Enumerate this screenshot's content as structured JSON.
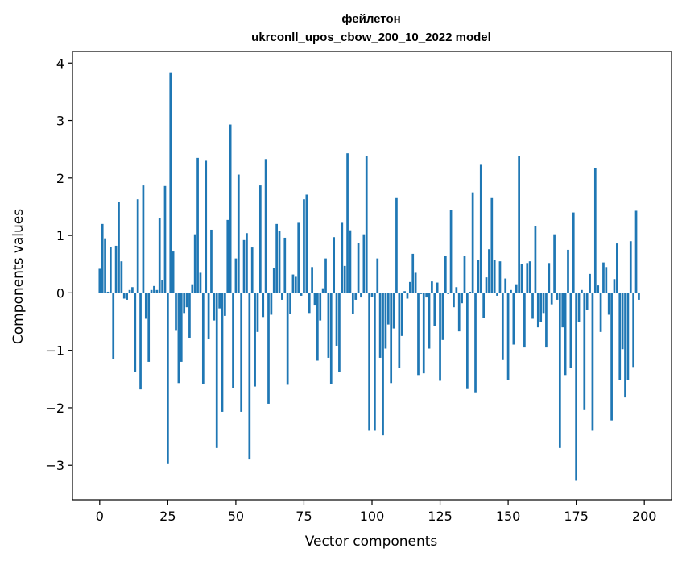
{
  "chart_data": {
    "type": "bar",
    "title_line1": "фейлетон",
    "title_line2": "ukrconll_upos_cbow_200_10_2022 model",
    "xlabel": "Vector components",
    "ylabel": "Components values",
    "xlim": [
      -10,
      210
    ],
    "ylim": [
      -3.6,
      4.2
    ],
    "xticks": [
      0,
      25,
      50,
      75,
      100,
      125,
      150,
      175,
      200
    ],
    "yticks": [
      -3,
      -2,
      -1,
      0,
      1,
      2,
      3,
      4
    ],
    "ytick_labels": [
      "−3",
      "−2",
      "−1",
      "0",
      "1",
      "2",
      "3",
      "4"
    ],
    "grid": false,
    "bar_color": "#1f77b4",
    "values": [
      0.42,
      1.2,
      0.95,
      0.02,
      0.8,
      -1.15,
      0.82,
      1.58,
      0.55,
      -0.1,
      -0.12,
      0.05,
      0.1,
      -1.38,
      1.63,
      -1.68,
      1.87,
      -0.45,
      -1.2,
      0.05,
      0.12,
      0.05,
      1.3,
      0.22,
      1.86,
      -2.98,
      3.84,
      0.72,
      -0.66,
      -1.57,
      -1.2,
      -0.35,
      -0.25,
      -0.78,
      0.15,
      1.02,
      2.35,
      0.35,
      -1.58,
      2.3,
      -0.8,
      1.1,
      -0.48,
      -2.7,
      -0.27,
      -2.07,
      -0.4,
      1.27,
      2.93,
      -1.65,
      0.6,
      2.06,
      -2.07,
      0.92,
      1.04,
      -2.9,
      0.79,
      -1.63,
      -0.68,
      1.87,
      -0.42,
      2.33,
      -1.93,
      -0.38,
      0.43,
      1.2,
      1.08,
      -0.12,
      0.96,
      -1.6,
      -0.36,
      0.32,
      0.28,
      1.22,
      -0.05,
      1.63,
      1.71,
      -0.35,
      0.45,
      -0.22,
      -1.18,
      -0.48,
      0.08,
      0.6,
      -1.13,
      -1.58,
      0.97,
      -0.92,
      -1.37,
      1.22,
      0.47,
      2.43,
      1.09,
      -0.36,
      -0.12,
      0.87,
      -0.08,
      1.02,
      2.38,
      -2.4,
      -0.07,
      -2.4,
      0.6,
      -1.13,
      -2.48,
      -0.97,
      -0.55,
      -1.57,
      -0.62,
      1.65,
      -1.3,
      -0.75,
      0.03,
      -0.1,
      0.19,
      0.68,
      0.35,
      -1.43,
      -0.02,
      -1.4,
      -0.08,
      -0.97,
      0.2,
      -0.58,
      0.18,
      -1.53,
      -0.82,
      0.64,
      -0.02,
      1.44,
      -0.25,
      0.1,
      -0.67,
      -0.18,
      0.65,
      -1.66,
      0.02,
      1.75,
      -1.73,
      0.58,
      2.23,
      -0.43,
      0.27,
      0.76,
      1.65,
      0.57,
      -0.05,
      0.55,
      -1.17,
      0.25,
      -1.51,
      0.05,
      -0.9,
      0.15,
      2.39,
      0.5,
      -0.95,
      0.52,
      0.55,
      -0.45,
      1.16,
      -0.6,
      -0.5,
      -0.35,
      -0.95,
      0.52,
      -0.2,
      1.02,
      -0.12,
      -2.7,
      -0.6,
      -1.43,
      0.75,
      -1.3,
      1.4,
      -3.27,
      -0.5,
      0.05,
      -2.04,
      -0.3,
      0.33,
      -2.4,
      2.17,
      0.13,
      -0.68,
      0.53,
      0.45,
      -0.38,
      -2.22,
      0.24,
      0.86,
      -1.51,
      -0.98,
      -1.82,
      -1.52,
      0.9,
      -1.29,
      1.43,
      -0.12
    ]
  }
}
